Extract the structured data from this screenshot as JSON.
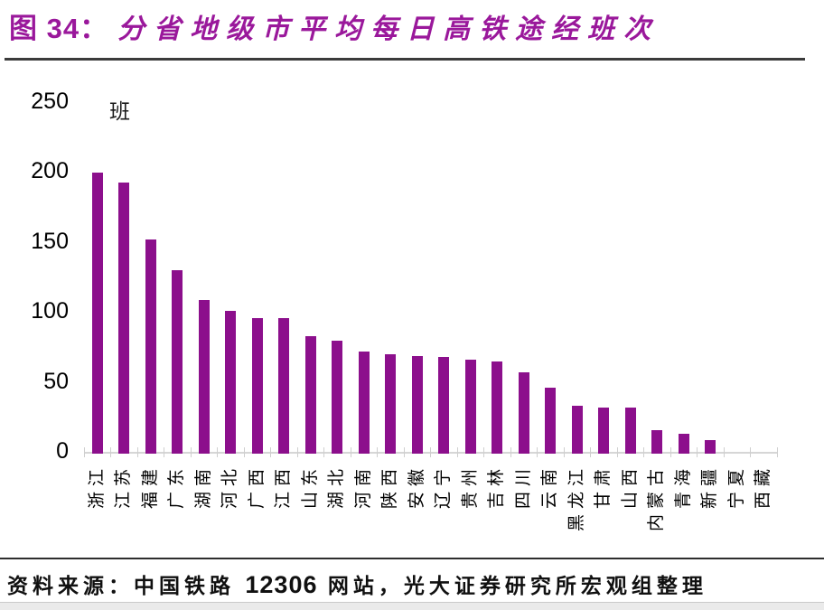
{
  "title": {
    "figure_label": "图 34：",
    "text": "分省地级市平均每日高铁途经班次"
  },
  "chart_data": {
    "type": "bar",
    "title": "分省地级市平均每日高铁途经班次",
    "unit_label": "班",
    "categories": [
      "浙江",
      "江苏",
      "福建",
      "广东",
      "湖南",
      "河北",
      "广西",
      "江西",
      "山东",
      "湖北",
      "河南",
      "陕西",
      "安徽",
      "辽宁",
      "贵州",
      "吉林",
      "四川",
      "云南",
      "黑龙江",
      "甘肃",
      "山西",
      "内蒙古",
      "青海",
      "新疆",
      "宁夏",
      "西藏"
    ],
    "values": [
      199,
      192,
      151,
      129,
      108,
      100,
      95,
      95,
      82,
      79,
      71,
      69,
      68,
      67,
      65,
      64,
      56,
      45,
      32,
      31,
      31,
      15,
      12,
      8,
      0,
      0
    ],
    "ylim": [
      0,
      250
    ],
    "yticks": [
      0,
      50,
      100,
      150,
      200,
      250
    ],
    "grid": false,
    "legend_position": "none",
    "bar_color": "#8C0F8C",
    "axis_color": "#d6d6d6"
  },
  "footer": {
    "source_prefix": "资料来源：中国铁路 ",
    "source_number": "12306",
    "source_suffix": " 网站，光大证券研究所宏观组整理"
  },
  "colors": {
    "title_purple": "#9A189B",
    "bar_purple": "#8C0F8C",
    "separator_dark": "#3b3b3b"
  }
}
